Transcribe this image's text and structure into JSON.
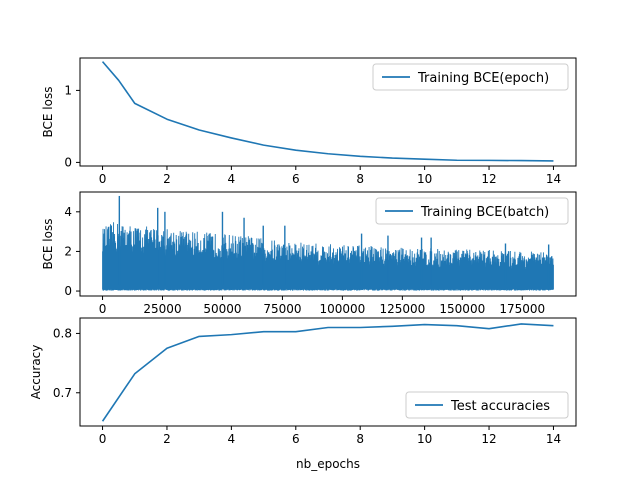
{
  "colors": {
    "series": "#1f77b4",
    "background": "#ffffff",
    "axis": "#000000"
  },
  "chart_data": [
    {
      "type": "line",
      "x": [
        0,
        0.5,
        1,
        2,
        3,
        4,
        5,
        6,
        7,
        8,
        9,
        10,
        11,
        12,
        13,
        14
      ],
      "series": [
        {
          "name": "Training BCE(epoch)",
          "values": [
            1.4,
            1.14,
            0.82,
            0.6,
            0.45,
            0.34,
            0.24,
            0.17,
            0.12,
            0.085,
            0.06,
            0.045,
            0.03,
            0.028,
            0.025,
            0.02
          ]
        }
      ],
      "ylabel": "BCE loss",
      "xlabel": "",
      "xlim": [
        -0.7,
        14.7
      ],
      "ylim": [
        -0.05,
        1.45
      ],
      "xticks": [
        0,
        2,
        4,
        6,
        8,
        10,
        12,
        14
      ],
      "yticks": [
        0,
        1
      ],
      "legend": "top-right"
    },
    {
      "type": "line",
      "x": [
        0,
        5000,
        10000,
        15000,
        20000,
        25000,
        30000,
        40000,
        50000,
        60000,
        70000,
        80000,
        90000,
        100000,
        110000,
        125000,
        140000,
        150000,
        160000,
        170000,
        180000,
        188000
      ],
      "series": [
        {
          "name": "Training BCE(batch)",
          "upper": [
            3.2,
            3.5,
            3.4,
            3.3,
            3.25,
            3.2,
            3.15,
            3.0,
            2.9,
            2.8,
            2.6,
            2.5,
            2.4,
            2.35,
            2.3,
            2.2,
            2.15,
            2.1,
            2.1,
            2.05,
            2.0,
            1.95
          ],
          "spikes": [
            [
              7000,
              4.8
            ],
            [
              23000,
              4.2
            ],
            [
              26000,
              4.0
            ],
            [
              50000,
              4.0
            ],
            [
              59000,
              3.7
            ],
            [
              67000,
              3.3
            ],
            [
              76000,
              3.3
            ],
            [
              108000,
              2.9
            ],
            [
              119000,
              2.8
            ],
            [
              133000,
              2.7
            ],
            [
              137000,
              2.7
            ],
            [
              168000,
              2.4
            ],
            [
              186000,
              2.35
            ]
          ]
        }
      ],
      "ylabel": "BCE loss",
      "xlabel": "",
      "xlim": [
        -9400,
        197400
      ],
      "ylim": [
        -0.25,
        5.0
      ],
      "xticks": [
        0,
        25000,
        50000,
        75000,
        100000,
        125000,
        150000,
        175000
      ],
      "yticks": [
        0,
        2,
        4
      ],
      "legend": "top-right"
    },
    {
      "type": "line",
      "x": [
        0,
        1,
        2,
        3,
        4,
        5,
        6,
        7,
        8,
        9,
        10,
        11,
        12,
        13,
        14
      ],
      "series": [
        {
          "name": "Test accuracies",
          "values": [
            0.652,
            0.732,
            0.775,
            0.795,
            0.798,
            0.803,
            0.803,
            0.81,
            0.81,
            0.812,
            0.815,
            0.813,
            0.808,
            0.816,
            0.813
          ]
        }
      ],
      "ylabel": "Accuracy",
      "xlabel": "nb_epochs",
      "xlim": [
        -0.7,
        14.7
      ],
      "ylim": [
        0.644,
        0.826
      ],
      "xticks": [
        0,
        2,
        4,
        6,
        8,
        10,
        12,
        14
      ],
      "yticks": [
        0.7,
        0.8
      ],
      "legend": "bottom-right"
    }
  ]
}
